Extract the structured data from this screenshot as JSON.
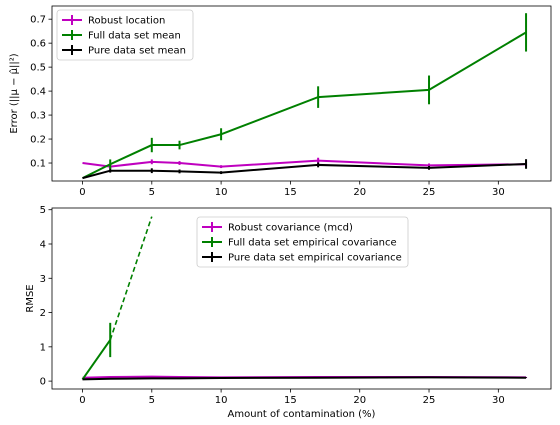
{
  "chart_data": [
    {
      "type": "line",
      "ylabel": "Error (||μ − μ̂||²)",
      "xlabel": "",
      "xlim": [
        -2.2,
        33.8
      ],
      "ylim": [
        0.025,
        0.755
      ],
      "xticks": [
        0,
        5,
        10,
        15,
        20,
        25,
        30
      ],
      "yticks": [
        0.1,
        0.2,
        0.3,
        0.4,
        0.5,
        0.6,
        0.7
      ],
      "ytick_labels": [
        "0.1",
        "0.2",
        "0.3",
        "0.4",
        "0.5",
        "0.6",
        "0.7"
      ],
      "legend_position": "top-left",
      "x": [
        0,
        2,
        5,
        7,
        10,
        17,
        25,
        32
      ],
      "series": [
        {
          "name": "Robust location",
          "color": "#bf00bf",
          "x": [
            0,
            2,
            5,
            7,
            10,
            17,
            25,
            32
          ],
          "values": [
            0.1,
            0.085,
            0.105,
            0.1,
            0.085,
            0.11,
            0.09,
            0.095
          ],
          "errors": [
            0.0,
            0.01,
            0.01,
            0.008,
            0.006,
            0.012,
            0.008,
            0.01
          ]
        },
        {
          "name": "Full data set mean",
          "color": "#008000",
          "x": [
            0,
            2,
            5,
            7,
            10,
            17,
            25,
            32
          ],
          "values": [
            0.037,
            0.095,
            0.175,
            0.175,
            0.22,
            0.375,
            0.405,
            0.645
          ],
          "errors": [
            0.0,
            0.02,
            0.03,
            0.018,
            0.025,
            0.045,
            0.06,
            0.08
          ]
        },
        {
          "name": "Pure data set mean",
          "color": "#000000",
          "x": [
            0,
            2,
            5,
            7,
            10,
            17,
            25,
            32
          ],
          "values": [
            0.037,
            0.068,
            0.068,
            0.065,
            0.06,
            0.092,
            0.08,
            0.096
          ],
          "errors": [
            0.0,
            0.008,
            0.01,
            0.008,
            0.006,
            0.01,
            0.008,
            0.02
          ]
        }
      ]
    },
    {
      "type": "line",
      "ylabel": "RMSE",
      "xlabel": "Amount of contamination (%)",
      "xlim": [
        -2.2,
        33.8
      ],
      "ylim": [
        -0.23,
        5.05
      ],
      "xticks": [
        0,
        5,
        10,
        15,
        20,
        25,
        30
      ],
      "yticks": [
        0,
        1,
        2,
        3,
        4,
        5
      ],
      "ytick_labels": [
        "0",
        "1",
        "2",
        "3",
        "4",
        "5"
      ],
      "legend_position": "upper-center",
      "series": [
        {
          "name": "Robust covariance (mcd)",
          "color": "#bf00bf",
          "x": [
            0,
            2,
            5,
            7,
            10,
            17,
            25,
            32
          ],
          "values": [
            0.1,
            0.12,
            0.13,
            0.12,
            0.11,
            0.12,
            0.12,
            0.11
          ],
          "errors": [
            0.0,
            0.01,
            0.01,
            0.01,
            0.01,
            0.01,
            0.01,
            0.01
          ]
        },
        {
          "name": "Full data set empirical covariance",
          "color": "#008000",
          "x": [
            0,
            2
          ],
          "values": [
            0.05,
            1.2
          ],
          "errors": [
            0.0,
            0.5
          ],
          "dashed_to": {
            "x": 5,
            "y": 4.8
          }
        },
        {
          "name": "Pure data set empirical covariance",
          "color": "#000000",
          "x": [
            0,
            2,
            5,
            7,
            10,
            17,
            25,
            32
          ],
          "values": [
            0.05,
            0.07,
            0.08,
            0.08,
            0.09,
            0.1,
            0.11,
            0.1
          ],
          "errors": [
            0.0,
            0.01,
            0.01,
            0.01,
            0.01,
            0.01,
            0.01,
            0.01
          ]
        }
      ]
    }
  ]
}
